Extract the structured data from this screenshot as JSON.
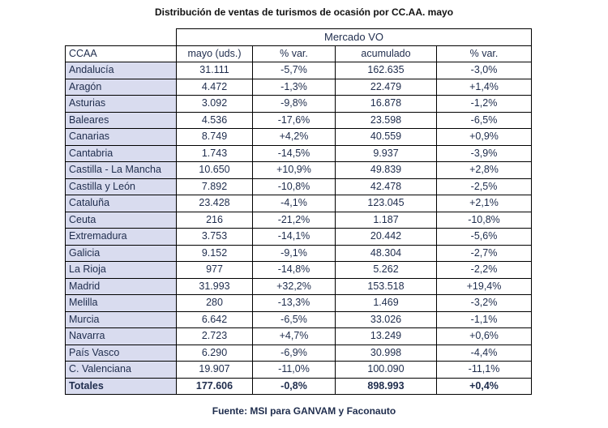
{
  "title": "Distribución de ventas de turismos de ocasión por CC.AA. mayo",
  "group_header": "Mercado VO",
  "columns": {
    "ccaa": "CCAA",
    "month": "mayo (uds.)",
    "month_var": "% var.",
    "cumulative": "acumulado",
    "cumulative_var": "% var."
  },
  "rows": [
    {
      "name": "Andalucía",
      "month": "31.111",
      "month_var": "-5,7%",
      "cumulative": "162.635",
      "cumulative_var": "-3,0%"
    },
    {
      "name": "Aragón",
      "month": "4.472",
      "month_var": "-1,3%",
      "cumulative": "22.479",
      "cumulative_var": "+1,4%"
    },
    {
      "name": "Asturias",
      "month": "3.092",
      "month_var": "-9,8%",
      "cumulative": "16.878",
      "cumulative_var": "-1,2%"
    },
    {
      "name": "Baleares",
      "month": "4.536",
      "month_var": "-17,6%",
      "cumulative": "23.598",
      "cumulative_var": "-6,5%"
    },
    {
      "name": "Canarias",
      "month": "8.749",
      "month_var": "+4,2%",
      "cumulative": "40.559",
      "cumulative_var": "+0,9%"
    },
    {
      "name": "Cantabria",
      "month": "1.743",
      "month_var": "-14,5%",
      "cumulative": "9.937",
      "cumulative_var": "-3,9%"
    },
    {
      "name": "Castilla - La Mancha",
      "month": "10.650",
      "month_var": "+10,9%",
      "cumulative": "49.839",
      "cumulative_var": "+2,8%"
    },
    {
      "name": "Castilla y León",
      "month": "7.892",
      "month_var": "-10,8%",
      "cumulative": "42.478",
      "cumulative_var": "-2,5%"
    },
    {
      "name": "Cataluña",
      "month": "23.428",
      "month_var": "-4,1%",
      "cumulative": "123.045",
      "cumulative_var": "+2,1%"
    },
    {
      "name": "Ceuta",
      "month": "216",
      "month_var": "-21,2%",
      "cumulative": "1.187",
      "cumulative_var": "-10,8%"
    },
    {
      "name": "Extremadura",
      "month": "3.753",
      "month_var": "-14,1%",
      "cumulative": "20.442",
      "cumulative_var": "-5,6%"
    },
    {
      "name": "Galicia",
      "month": "9.152",
      "month_var": "-9,1%",
      "cumulative": "48.304",
      "cumulative_var": "-2,7%"
    },
    {
      "name": "La Rioja",
      "month": "977",
      "month_var": "-14,8%",
      "cumulative": "5.262",
      "cumulative_var": "-2,2%"
    },
    {
      "name": "Madrid",
      "month": "31.993",
      "month_var": "+32,2%",
      "cumulative": "153.518",
      "cumulative_var": "+19,4%"
    },
    {
      "name": "Melilla",
      "month": "280",
      "month_var": "-13,3%",
      "cumulative": "1.469",
      "cumulative_var": "-3,2%"
    },
    {
      "name": "Murcia",
      "month": "6.642",
      "month_var": "-6,5%",
      "cumulative": "33.026",
      "cumulative_var": "-1,1%"
    },
    {
      "name": "Navarra",
      "month": "2.723",
      "month_var": "+4,7%",
      "cumulative": "13.249",
      "cumulative_var": "+0,6%"
    },
    {
      "name": "País Vasco",
      "month": "6.290",
      "month_var": "-6,9%",
      "cumulative": "30.998",
      "cumulative_var": "-4,4%"
    },
    {
      "name": "C. Valenciana",
      "month": "19.907",
      "month_var": "-11,0%",
      "cumulative": "100.090",
      "cumulative_var": "-11,1%"
    }
  ],
  "totals": {
    "name": "Totales",
    "month": "177.606",
    "month_var": "-0,8%",
    "cumulative": "898.993",
    "cumulative_var": "+0,4%"
  },
  "source": "Fuente: MSI para GANVAM y Faconauto"
}
